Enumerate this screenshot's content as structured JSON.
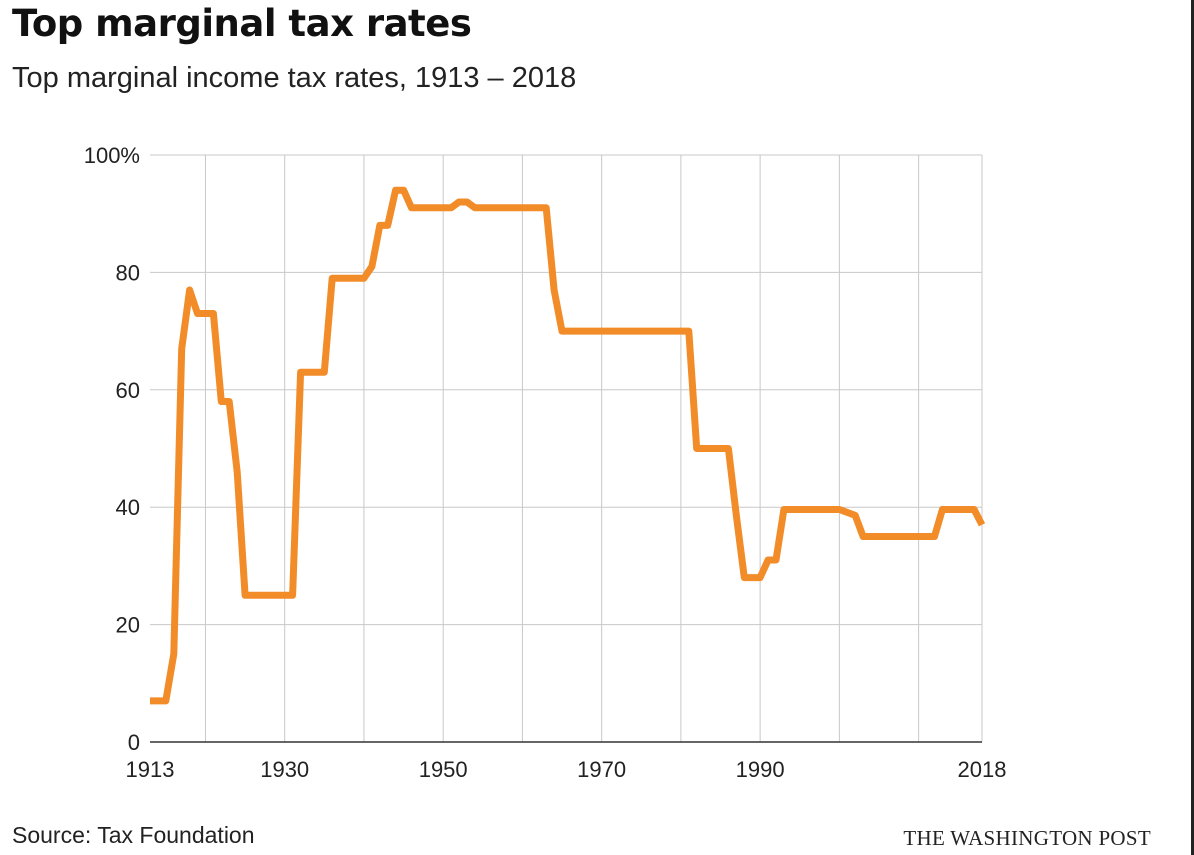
{
  "chart_data": {
    "type": "line",
    "title": "Top marginal tax rates",
    "subtitle": "Top marginal income tax rates, 1913 – 2018",
    "xlabel": "",
    "ylabel": "",
    "xlim": [
      1913,
      2018
    ],
    "ylim": [
      0,
      100
    ],
    "x_ticks": [
      {
        "value": 1913,
        "label": "1913"
      },
      {
        "value": 1930,
        "label": "1930"
      },
      {
        "value": 1950,
        "label": "1950"
      },
      {
        "value": 1970,
        "label": "1970"
      },
      {
        "value": 1990,
        "label": "1990"
      },
      {
        "value": 2018,
        "label": "2018"
      }
    ],
    "x_gridlines": [
      1920,
      1930,
      1940,
      1950,
      1960,
      1970,
      1980,
      1990,
      2000,
      2010,
      2018
    ],
    "y_ticks": [
      {
        "value": 0,
        "label": "0"
      },
      {
        "value": 20,
        "label": "20"
      },
      {
        "value": 40,
        "label": "40"
      },
      {
        "value": 60,
        "label": "60"
      },
      {
        "value": 80,
        "label": "80"
      },
      {
        "value": 100,
        "label": "100%"
      }
    ],
    "grid": true,
    "series": [
      {
        "name": "Top marginal income tax rate",
        "color": "#f28c28",
        "points": [
          [
            1913,
            7
          ],
          [
            1915,
            7
          ],
          [
            1916,
            15
          ],
          [
            1917,
            67
          ],
          [
            1918,
            77
          ],
          [
            1919,
            73
          ],
          [
            1921,
            73
          ],
          [
            1922,
            58
          ],
          [
            1923,
            58
          ],
          [
            1924,
            46
          ],
          [
            1925,
            25
          ],
          [
            1931,
            25
          ],
          [
            1932,
            63
          ],
          [
            1935,
            63
          ],
          [
            1936,
            79
          ],
          [
            1940,
            79
          ],
          [
            1941,
            81
          ],
          [
            1942,
            88
          ],
          [
            1943,
            88
          ],
          [
            1944,
            94
          ],
          [
            1945,
            94
          ],
          [
            1946,
            91
          ],
          [
            1951,
            91
          ],
          [
            1952,
            92
          ],
          [
            1953,
            92
          ],
          [
            1954,
            91
          ],
          [
            1963,
            91
          ],
          [
            1964,
            77
          ],
          [
            1965,
            70
          ],
          [
            1981,
            70
          ],
          [
            1982,
            50
          ],
          [
            1986,
            50
          ],
          [
            1987,
            38.5
          ],
          [
            1988,
            28
          ],
          [
            1990,
            28
          ],
          [
            1991,
            31
          ],
          [
            1992,
            31
          ],
          [
            1993,
            39.6
          ],
          [
            2000,
            39.6
          ],
          [
            2002,
            38.6
          ],
          [
            2003,
            35
          ],
          [
            2012,
            35
          ],
          [
            2013,
            39.6
          ],
          [
            2017,
            39.6
          ],
          [
            2018,
            37
          ]
        ]
      }
    ]
  },
  "footer": {
    "source": "Source: Tax Foundation",
    "credit": "THE WASHINGTON POST"
  }
}
